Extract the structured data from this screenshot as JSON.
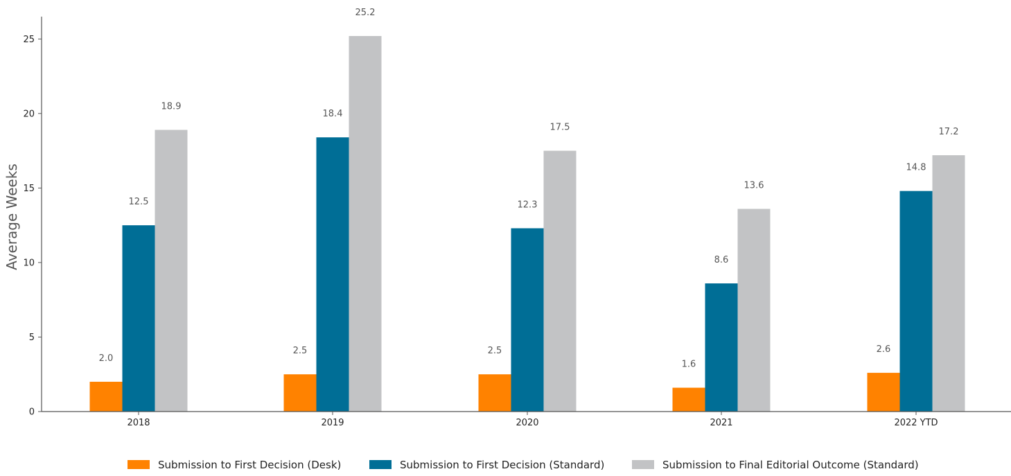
{
  "chart_data": {
    "type": "bar",
    "title": "",
    "xlabel": "",
    "ylabel": "Average Weeks",
    "categories": [
      "2018",
      "2019",
      "2020",
      "2021",
      "2022 YTD"
    ],
    "ylim": [
      0,
      26.5
    ],
    "yticks": [
      0,
      5,
      10,
      15,
      20,
      25
    ],
    "grid": false,
    "legend_position": "bottom-center",
    "series": [
      {
        "name": "Submission to First Decision (Desk)",
        "color": "#FF8200",
        "values": [
          2.0,
          2.5,
          2.5,
          1.6,
          2.6
        ],
        "labels": [
          "2.0",
          "2.5",
          "2.5",
          "1.6",
          "2.6"
        ]
      },
      {
        "name": "Submission to First Decision (Standard)",
        "color": "#006E96",
        "values": [
          12.5,
          18.4,
          12.3,
          8.6,
          14.8
        ],
        "labels": [
          "12.5",
          "18.4",
          "12.3",
          "8.6",
          "14.8"
        ]
      },
      {
        "name": "Submission to Final Editorial Outcome (Standard)",
        "color": "#C2C3C5",
        "values": [
          18.9,
          25.2,
          17.5,
          13.6,
          17.2
        ],
        "labels": [
          "18.9",
          "25.2",
          "17.5",
          "13.6",
          "17.2"
        ]
      }
    ]
  }
}
